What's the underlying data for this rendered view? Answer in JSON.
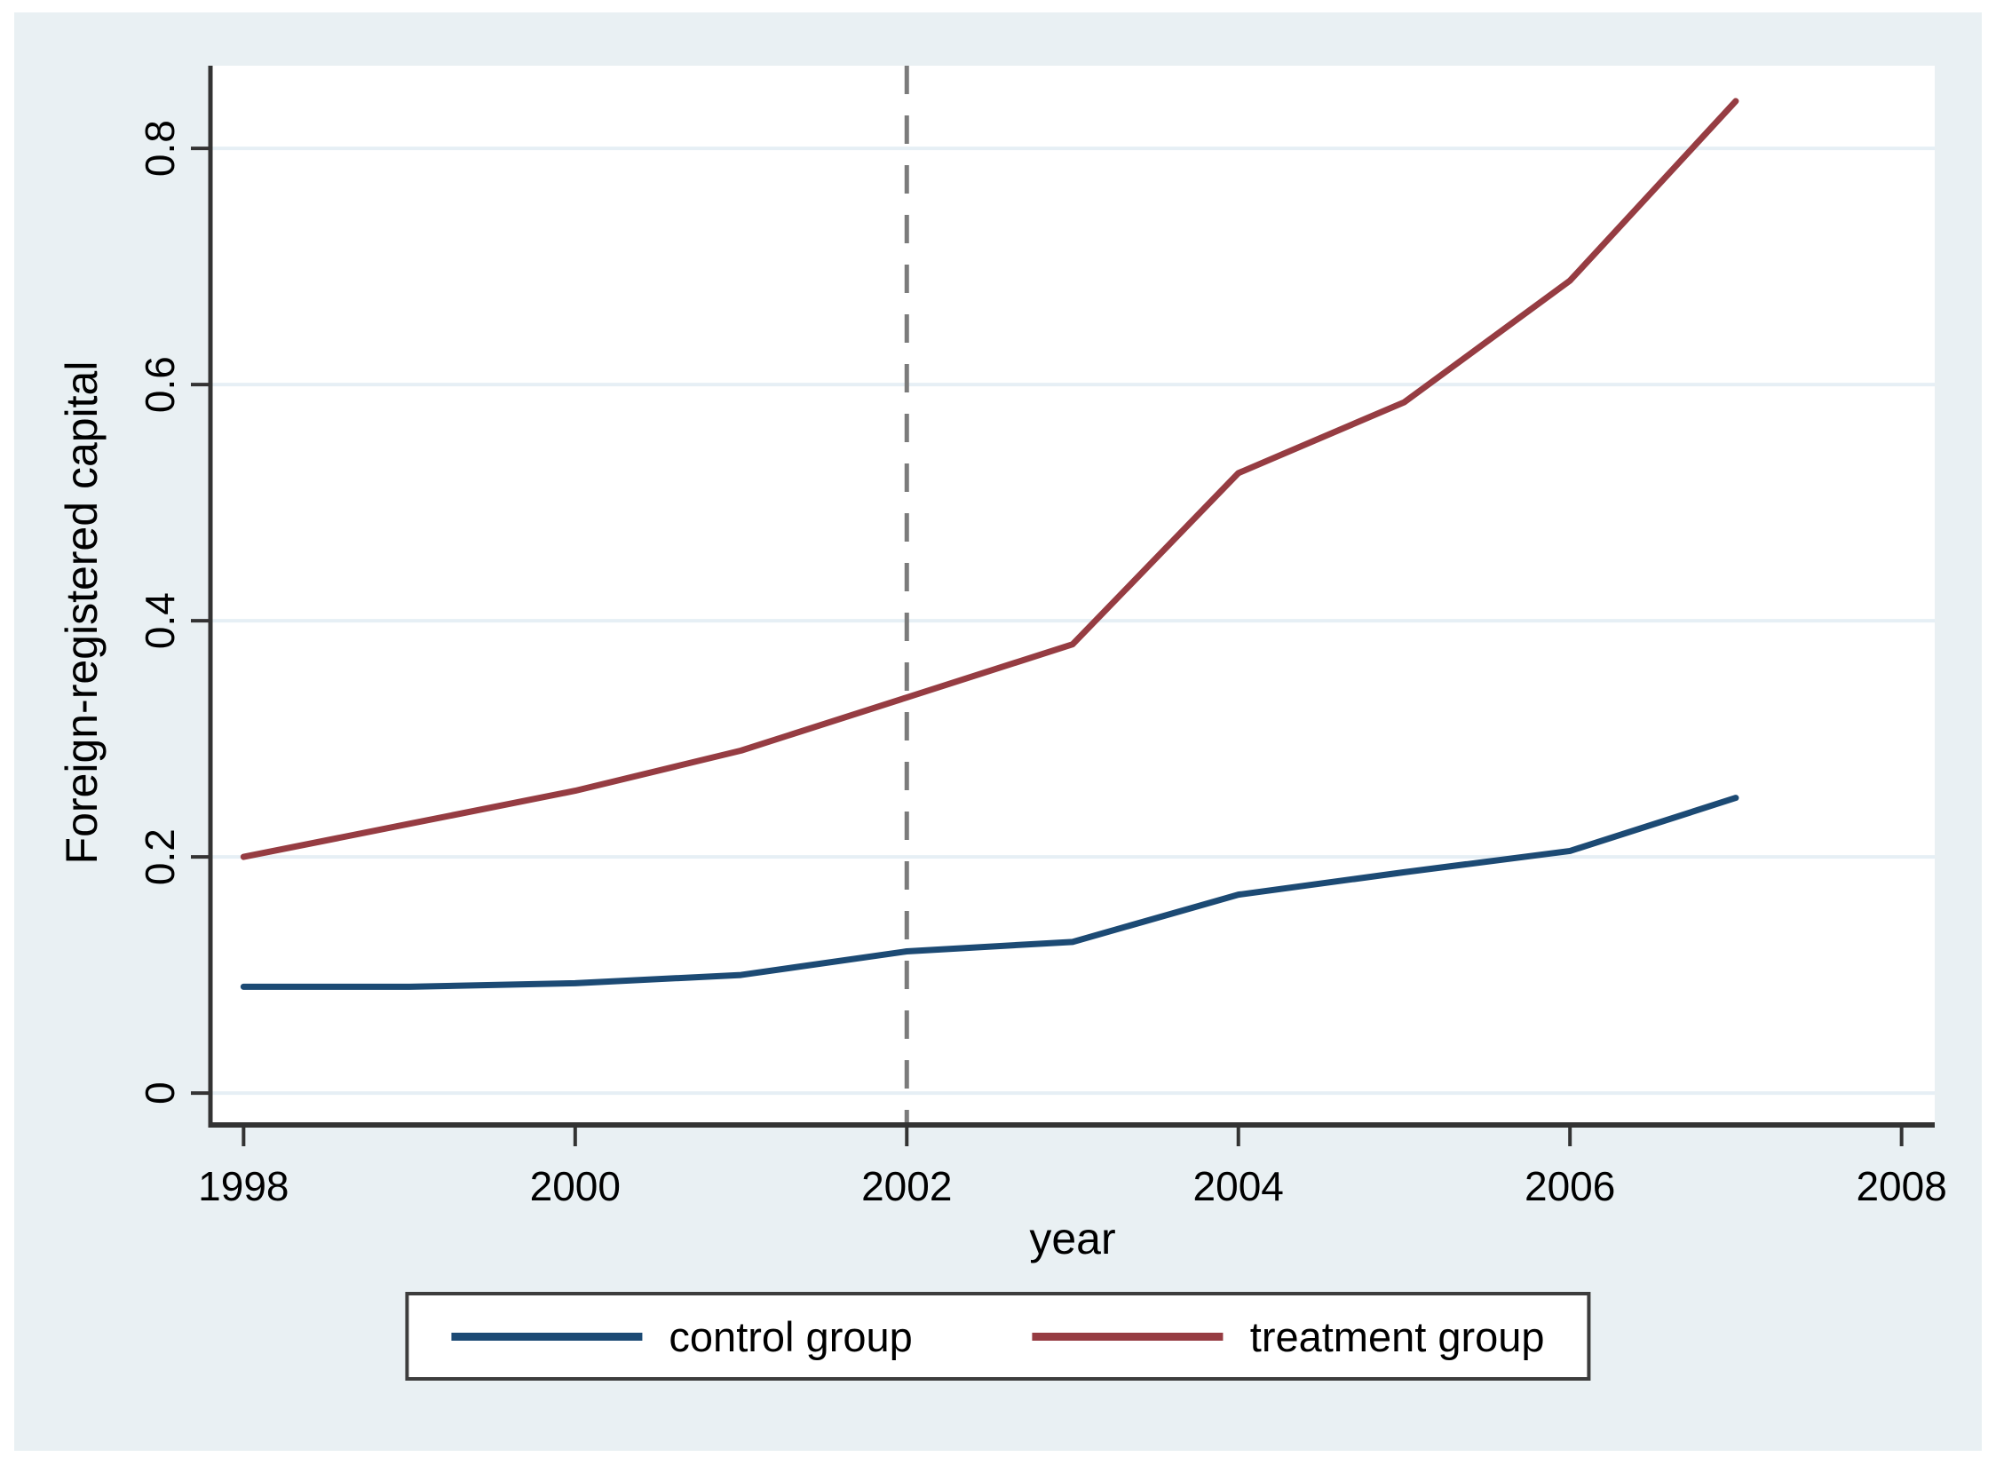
{
  "chart_data": {
    "type": "line",
    "title": "",
    "xlabel": "year",
    "ylabel": "Foreign-registered capital",
    "x": [
      1998,
      1999,
      2000,
      2001,
      2002,
      2003,
      2004,
      2005,
      2006,
      2007
    ],
    "series": [
      {
        "name": "control group",
        "color": "#1c4a74",
        "values": [
          0.09,
          0.09,
          0.093,
          0.1,
          0.12,
          0.128,
          0.168,
          0.187,
          0.205,
          0.25
        ]
      },
      {
        "name": "treatment group",
        "color": "#963c42",
        "values": [
          0.2,
          0.228,
          0.256,
          0.29,
          0.335,
          0.38,
          0.525,
          0.585,
          0.688,
          0.84
        ]
      }
    ],
    "xticks": [
      1998,
      2000,
      2002,
      2004,
      2006,
      2008
    ],
    "xtick_labels": [
      "1998",
      "2000",
      "2002",
      "2004",
      "2006",
      "2008"
    ],
    "yticks": [
      0,
      0.2,
      0.4,
      0.6,
      0.8
    ],
    "ytick_labels": [
      "0",
      "0.2",
      "0.4",
      "0.6",
      "0.8"
    ],
    "xlim": [
      1997.8,
      2008.2
    ],
    "ylim": [
      -0.027,
      0.87
    ],
    "grid": true,
    "legend_position": "bottom-center",
    "reference_line": {
      "x": 2002,
      "style": "dashed"
    }
  },
  "colors": {
    "page_background": "#ffffff",
    "graph_background": "#e9f0f3",
    "plot_background": "#ffffff",
    "gridline": "#e6eff5",
    "axis": "#333333",
    "text": "#000000",
    "reference_line": "#7b7b7b",
    "legend_border": "#3d3d3d",
    "control_line": "#1c4a74",
    "treatment_line": "#963c42"
  }
}
